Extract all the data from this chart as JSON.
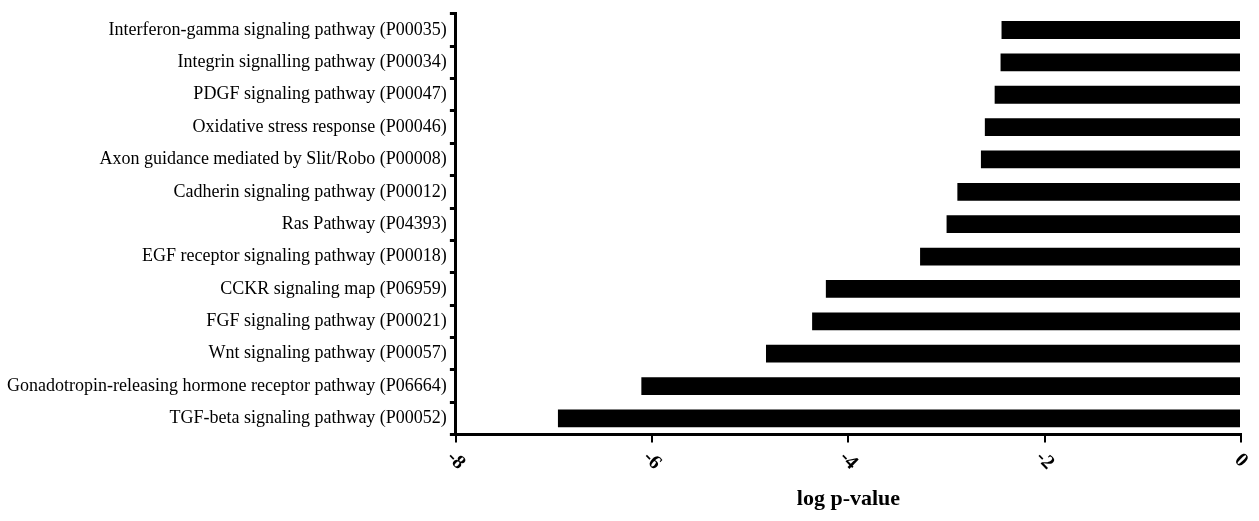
{
  "chart_data": {
    "type": "bar",
    "orientation": "horizontal",
    "xlabel": "log p-value",
    "categories": [
      "Interferon-gamma signaling pathway (P00035)",
      "Integrin signalling pathway (P00034)",
      "PDGF signaling pathway (P00047)",
      "Oxidative stress response (P00046)",
      "Axon guidance mediated by Slit/Robo (P00008)",
      "Cadherin signaling pathway (P00012)",
      "Ras Pathway (P04393)",
      "EGF receptor signaling pathway (P00018)",
      "CCKR signaling map (P06959)",
      "FGF signaling pathway (P00021)",
      "Wnt signaling pathway (P00057)",
      "Gonadotropin-releasing hormone receptor pathway (P06664)",
      "TGF-beta signaling pathway (P00052)"
    ],
    "values": [
      -2.44,
      -2.45,
      -2.51,
      -2.61,
      -2.65,
      -2.89,
      -3.0,
      -3.27,
      -4.23,
      -4.37,
      -4.84,
      -6.11,
      -6.96
    ],
    "color": "#000000",
    "xlim": [
      -8,
      0
    ],
    "xticks": [
      -8,
      -6,
      -4,
      -2,
      0
    ],
    "grid": false,
    "legend": false
  }
}
